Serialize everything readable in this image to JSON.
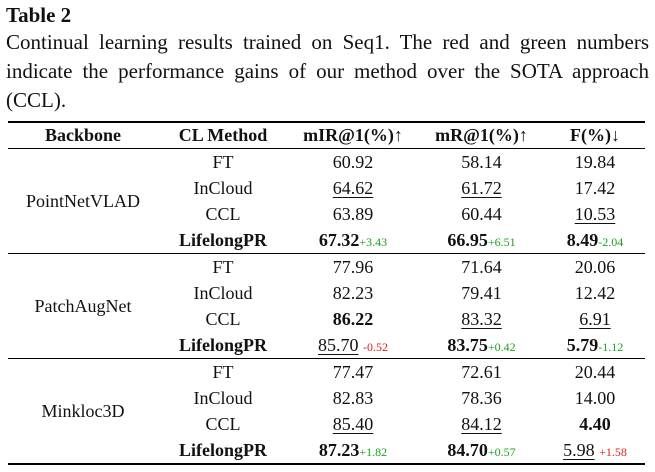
{
  "table_label": "Table 2",
  "caption": "Continual learning results trained on Seq1. The red and green numbers indicate the performance gains of our method over the SOTA approach (CCL).",
  "headers": {
    "backbone": "Backbone",
    "method": "CL Method",
    "mir": "mIR@1(%)↑",
    "mr": "mR@1(%)↑",
    "f": "F(%)↓"
  },
  "groups": [
    {
      "backbone": "PointNetVLAD",
      "rows": [
        {
          "method": "FT",
          "mir": "60.92",
          "mr": "58.14",
          "f": "19.84"
        },
        {
          "method": "InCloud",
          "mir": "64.62",
          "mr": "61.72",
          "f": "17.42"
        },
        {
          "method": "CCL",
          "mir": "63.89",
          "mr": "60.44",
          "f": "10.53"
        },
        {
          "method": "LifelongPR",
          "mir": "67.32",
          "mir_delta": "+3.43",
          "mr": "66.95",
          "mr_delta": "+6.51",
          "f": "8.49",
          "f_delta": "-2.04"
        }
      ]
    },
    {
      "backbone": "PatchAugNet",
      "rows": [
        {
          "method": "FT",
          "mir": "77.96",
          "mr": "71.64",
          "f": "20.06"
        },
        {
          "method": "InCloud",
          "mir": "82.23",
          "mr": "79.41",
          "f": "12.42"
        },
        {
          "method": "CCL",
          "mir": "86.22",
          "mr": "83.32",
          "f": "6.91"
        },
        {
          "method": "LifelongPR",
          "mir": "85.70",
          "mir_delta": "-0.52",
          "mr": "83.75",
          "mr_delta": "+0.42",
          "f": "5.79",
          "f_delta": "-1.12"
        }
      ]
    },
    {
      "backbone": "Minkloc3D",
      "rows": [
        {
          "method": "FT",
          "mir": "77.47",
          "mr": "72.61",
          "f": "20.44"
        },
        {
          "method": "InCloud",
          "mir": "82.83",
          "mr": "78.36",
          "f": "14.00"
        },
        {
          "method": "CCL",
          "mir": "85.40",
          "mr": "84.12",
          "f": "4.40"
        },
        {
          "method": "LifelongPR",
          "mir": "87.23",
          "mir_delta": "+1.82",
          "mr": "84.70",
          "mr_delta": "+0.57",
          "f": "5.98",
          "f_delta": "+1.58"
        }
      ]
    }
  ]
}
